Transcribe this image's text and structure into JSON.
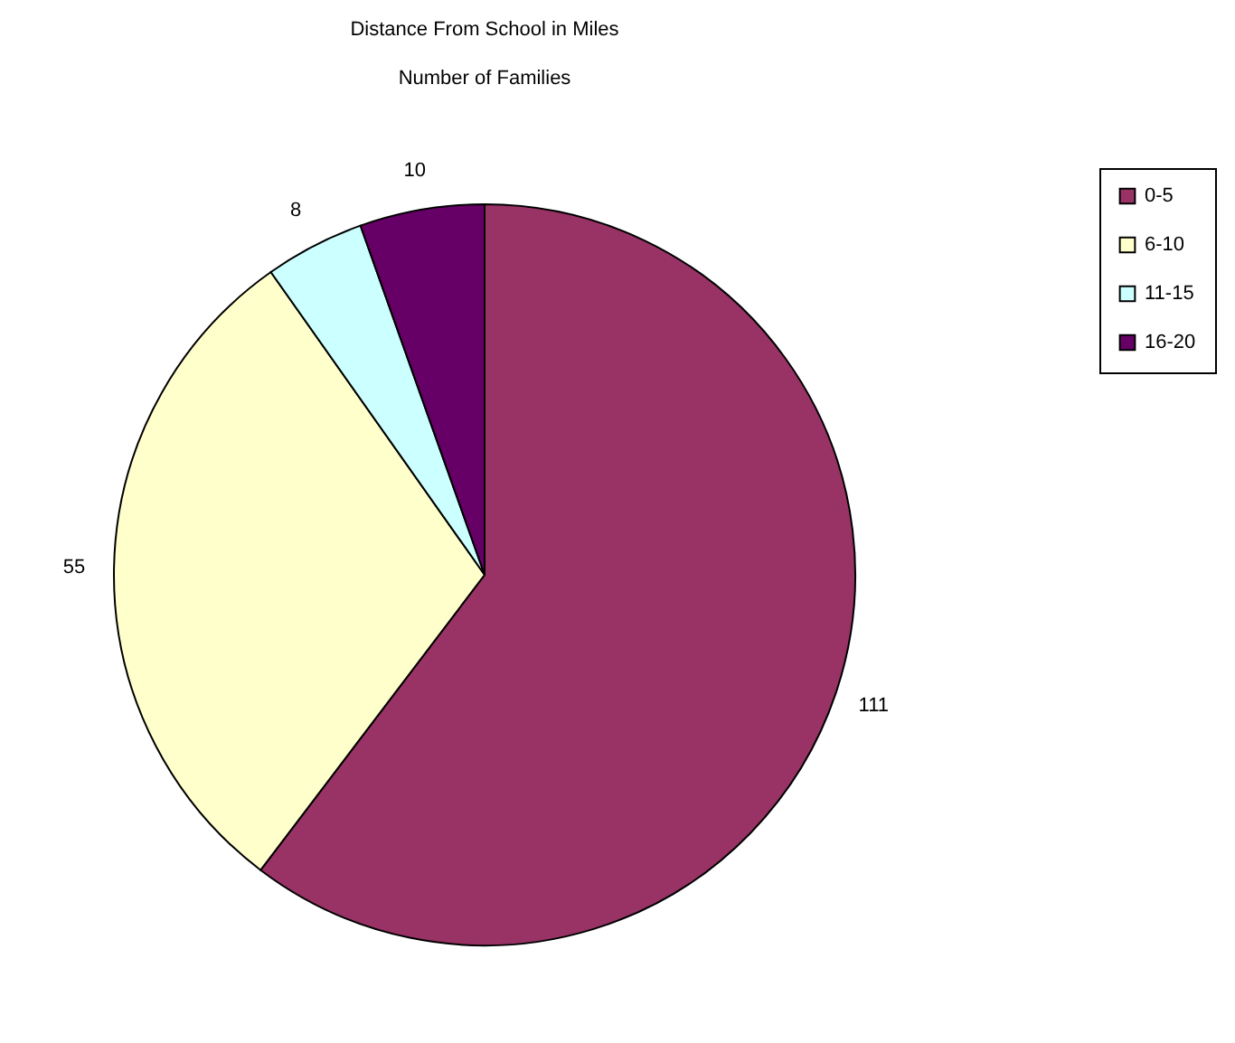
{
  "chart_data": {
    "type": "pie",
    "title": "Distance From School in Miles",
    "subtitle": "Number of Families",
    "categories": [
      "0-5",
      "6-10",
      "11-15",
      "16-20"
    ],
    "values": [
      111,
      55,
      8,
      10
    ],
    "colors": [
      "#993366",
      "#ffffcc",
      "#ccffff",
      "#660066"
    ],
    "data_labels": true,
    "legend": "right"
  }
}
